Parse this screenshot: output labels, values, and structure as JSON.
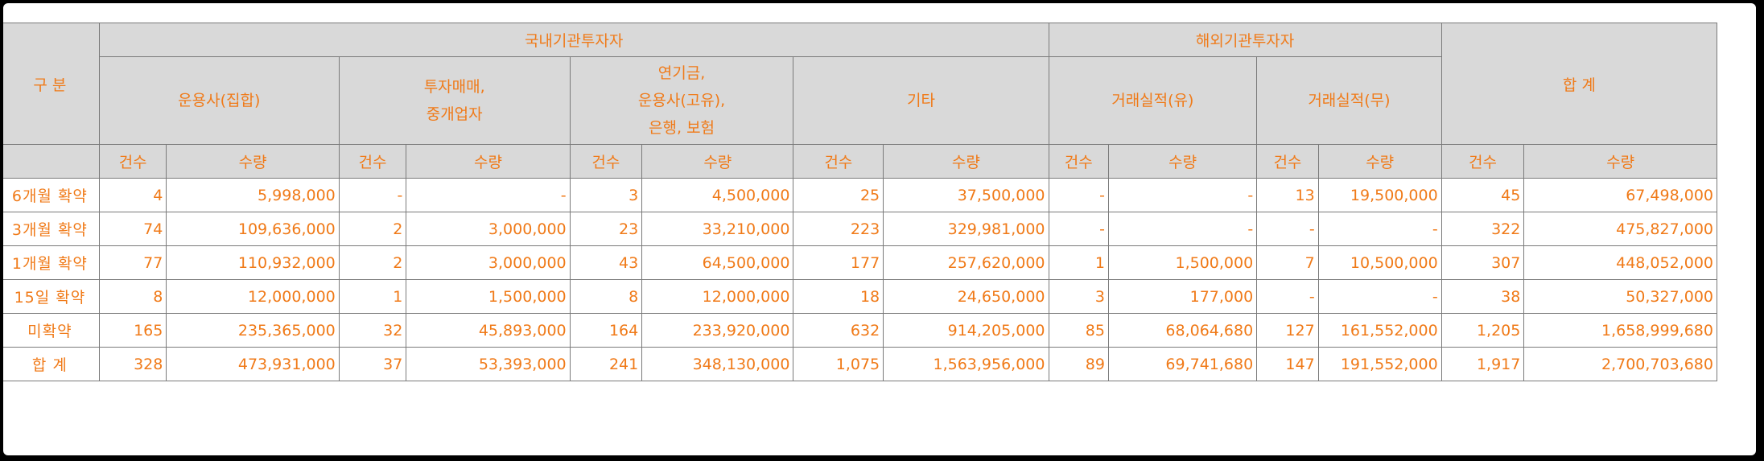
{
  "table": {
    "corner_label": "구 분",
    "groups": [
      "국내기관투자자",
      "해외기관투자자",
      "합 계"
    ],
    "subgroups": [
      [
        "운용사(집합)"
      ],
      [
        "투자매매,",
        "중개업자"
      ],
      [
        "연기금,",
        "운용사(고유),",
        "은행, 보험"
      ],
      [
        "기타"
      ],
      [
        "거래실적(유)"
      ],
      [
        "거래실적(무)"
      ]
    ],
    "col_count_label": "건수",
    "col_qty_label": "수량",
    "rows": [
      {
        "label": "6개월 확약",
        "cells": [
          "4",
          "5,998,000",
          "-",
          "-",
          "3",
          "4,500,000",
          "25",
          "37,500,000",
          "-",
          "-",
          "13",
          "19,500,000",
          "45",
          "67,498,000"
        ]
      },
      {
        "label": "3개월 확약",
        "cells": [
          "74",
          "109,636,000",
          "2",
          "3,000,000",
          "23",
          "33,210,000",
          "223",
          "329,981,000",
          "-",
          "-",
          "-",
          "-",
          "322",
          "475,827,000"
        ]
      },
      {
        "label": "1개월 확약",
        "cells": [
          "77",
          "110,932,000",
          "2",
          "3,000,000",
          "43",
          "64,500,000",
          "177",
          "257,620,000",
          "1",
          "1,500,000",
          "7",
          "10,500,000",
          "307",
          "448,052,000"
        ]
      },
      {
        "label": "15일 확약",
        "cells": [
          "8",
          "12,000,000",
          "1",
          "1,500,000",
          "8",
          "12,000,000",
          "18",
          "24,650,000",
          "3",
          "177,000",
          "-",
          "-",
          "38",
          "50,327,000"
        ]
      },
      {
        "label": "미확약",
        "cells": [
          "165",
          "235,365,000",
          "32",
          "45,893,000",
          "164",
          "233,920,000",
          "632",
          "914,205,000",
          "85",
          "68,064,680",
          "127",
          "161,552,000",
          "1,205",
          "1,658,999,680"
        ]
      },
      {
        "label": "합 계",
        "cells": [
          "328",
          "473,931,000",
          "37",
          "53,393,000",
          "241",
          "348,130,000",
          "1,075",
          "1,563,956,000",
          "89",
          "69,741,680",
          "147",
          "191,552,000",
          "1,917",
          "2,700,703,680"
        ]
      }
    ]
  }
}
